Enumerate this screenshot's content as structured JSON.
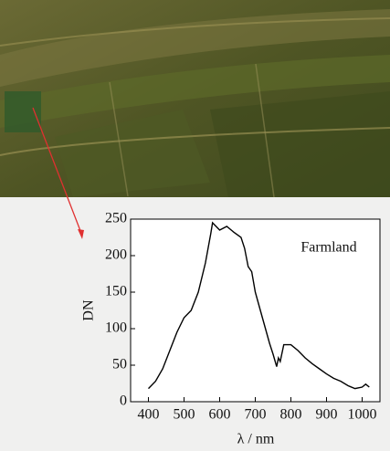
{
  "chart_data": {
    "type": "line",
    "annotation": "Farmland",
    "x_label": "λ / nm",
    "y_label": "DN",
    "x": [
      400,
      420,
      440,
      460,
      480,
      500,
      520,
      540,
      560,
      575,
      580,
      590,
      600,
      620,
      640,
      660,
      670,
      680,
      690,
      700,
      720,
      740,
      750,
      760,
      765,
      770,
      780,
      800,
      820,
      840,
      860,
      880,
      900,
      920,
      940,
      960,
      980,
      1000,
      1010,
      1020
    ],
    "series": [
      {
        "color": "#000000",
        "values": [
          18,
          28,
          45,
          70,
          95,
          115,
          125,
          150,
          190,
          230,
          245,
          240,
          235,
          240,
          232,
          225,
          210,
          185,
          178,
          150,
          115,
          80,
          65,
          48,
          60,
          55,
          78,
          78,
          70,
          60,
          52,
          45,
          38,
          32,
          28,
          22,
          18,
          20,
          24,
          20
        ]
      }
    ],
    "xlim": [
      350,
      1050
    ],
    "xticks": [
      400,
      500,
      600,
      700,
      800,
      900,
      1000
    ],
    "ylim": [
      0,
      250
    ],
    "yticks": [
      0,
      50,
      100,
      150,
      200,
      250
    ]
  }
}
